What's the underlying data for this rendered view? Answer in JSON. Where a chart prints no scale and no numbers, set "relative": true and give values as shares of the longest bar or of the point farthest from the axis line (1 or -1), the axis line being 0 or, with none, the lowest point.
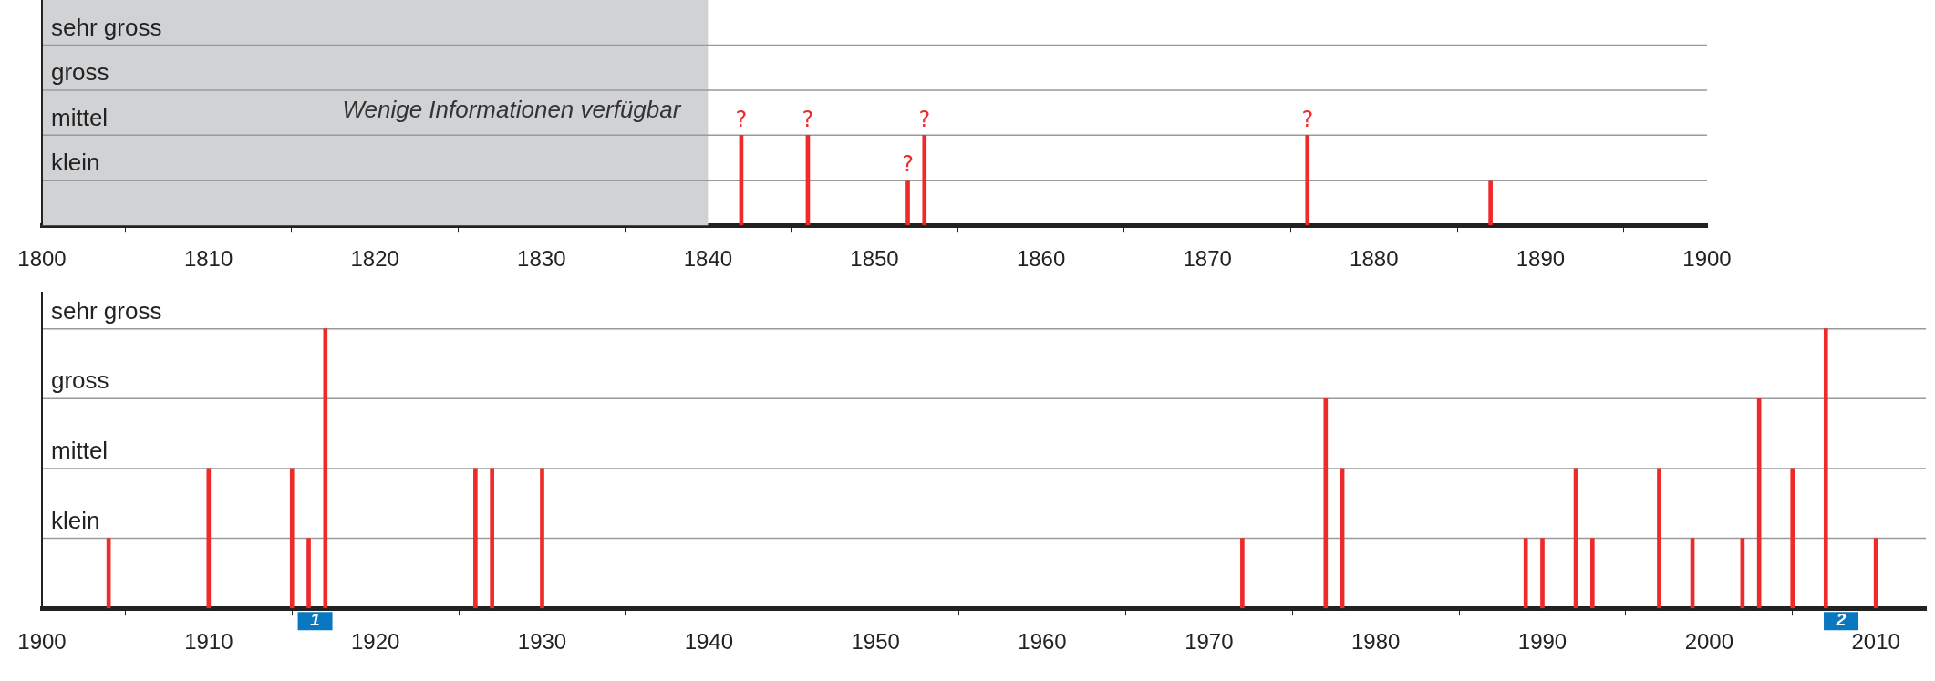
{
  "chart_data": [
    {
      "type": "bar",
      "color": "#ee2a2b",
      "relative": true,
      "x": [
        1842,
        1846,
        1852,
        1853,
        1876,
        1887
      ],
      "values": [
        1,
        1,
        0.5,
        1,
        1,
        0.5
      ],
      "xlim": [
        1800,
        1900
      ],
      "xticks": [
        1800,
        1810,
        1820,
        1830,
        1840,
        1850,
        1860,
        1870,
        1880,
        1890,
        1900
      ],
      "ref_lines": [
        {
          "axis": "y",
          "value": 0.5,
          "label": "klein",
          "color": "#9a9a9a"
        },
        {
          "axis": "y",
          "value": 1,
          "label": "mittel",
          "color": "#9a9a9a"
        },
        {
          "axis": "y",
          "value": 1.5,
          "label": "gross",
          "color": "#9a9a9a"
        },
        {
          "axis": "y",
          "value": 2,
          "label": "sehr gross",
          "color": "#9a9a9a"
        }
      ],
      "bands": [
        {
          "axis": "x",
          "from": 1800,
          "to": 1840,
          "label": "Wenige Informationen verfügbar",
          "color": "#d1d2d4"
        }
      ],
      "annotations": [
        {
          "text": "?",
          "x": 1842,
          "y": 1
        },
        {
          "text": "?",
          "x": 1846,
          "y": 1
        },
        {
          "text": "?",
          "x": 1852,
          "y": 0.5
        },
        {
          "text": "?",
          "x": 1853,
          "y": 1
        },
        {
          "text": "?",
          "x": 1876,
          "y": 1
        }
      ]
    },
    {
      "type": "bar",
      "color": "#ee2a2b",
      "relative": true,
      "x": [
        1904,
        1910,
        1915,
        1916,
        1917,
        1926,
        1927,
        1930,
        1972,
        1977,
        1978,
        1989,
        1990,
        1992,
        1993,
        1997,
        1999,
        2002,
        2003,
        2005,
        2007,
        2010
      ],
      "values": [
        0.25,
        0.5,
        0.5,
        0.25,
        1,
        0.5,
        0.5,
        0.5,
        0.25,
        0.75,
        0.5,
        0.25,
        0.25,
        0.5,
        0.25,
        0.5,
        0.25,
        0.25,
        0.75,
        0.5,
        1,
        0.25
      ],
      "xlim": [
        1900,
        2013
      ],
      "xticks": [
        1900,
        1910,
        1920,
        1930,
        1940,
        1950,
        1960,
        1970,
        1980,
        1990,
        2000,
        2010
      ],
      "ref_lines": [
        {
          "axis": "y",
          "value": 0.25,
          "label": "klein",
          "color": "#9a9a9a"
        },
        {
          "axis": "y",
          "value": 0.5,
          "label": "mittel",
          "color": "#9a9a9a"
        },
        {
          "axis": "y",
          "value": 0.75,
          "label": "gross",
          "color": "#9a9a9a"
        },
        {
          "axis": "y",
          "value": 1,
          "label": "sehr gross",
          "color": "#9a9a9a"
        }
      ],
      "annotations": [
        "1",
        "2"
      ]
    }
  ]
}
